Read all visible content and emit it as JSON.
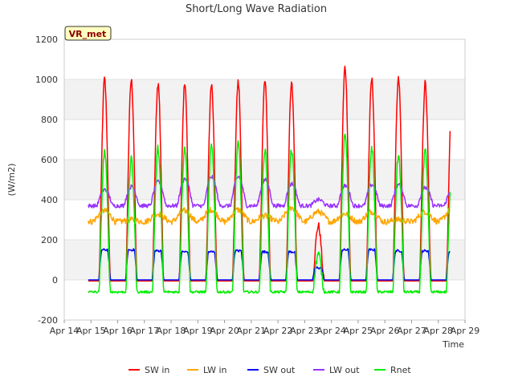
{
  "chart_data": {
    "type": "line",
    "title": "Short/Long Wave Radiation",
    "xlabel": "Time",
    "ylabel": "(W/m2)",
    "badge": "VR_met",
    "x_ticks": [
      "Apr 14",
      "Apr 15",
      "Apr 16",
      "Apr 17",
      "Apr 18",
      "Apr 19",
      "Apr 20",
      "Apr 21",
      "Apr 22",
      "Apr 23",
      "Apr 24",
      "Apr 25",
      "Apr 26",
      "Apr 27",
      "Apr 28",
      "Apr 29"
    ],
    "y_ticks": [
      -200,
      0,
      200,
      400,
      600,
      800,
      1000,
      1200
    ],
    "ylim": [
      -200,
      1200
    ],
    "grid": true,
    "legend_position": "bottom",
    "x_start_day": 14,
    "series": [
      {
        "name": "SW in",
        "color": "#ff0000",
        "daily_peak": [
          1000,
          995,
          980,
          975,
          970,
          985,
          990,
          975,
          270,
          1060,
          1000,
          1000,
          980,
          900
        ],
        "night": -5
      },
      {
        "name": "LW in",
        "color": "#ffa500",
        "daily_peak": [
          345,
          300,
          330,
          345,
          350,
          350,
          320,
          360,
          340,
          330,
          340,
          300,
          340,
          350
        ],
        "night": 290
      },
      {
        "name": "SW out",
        "color": "#0000ff",
        "daily_peak": [
          150,
          150,
          145,
          140,
          140,
          145,
          140,
          140,
          60,
          150,
          150,
          145,
          145,
          140
        ],
        "night": 0
      },
      {
        "name": "LW out",
        "color": "#9933ff",
        "daily_peak": [
          440,
          455,
          480,
          495,
          505,
          505,
          490,
          470,
          390,
          460,
          465,
          465,
          450,
          440
        ],
        "night": 360
      },
      {
        "name": "Rnet",
        "color": "#00ee00",
        "daily_peak": [
          640,
          600,
          655,
          660,
          665,
          675,
          650,
          650,
          130,
          720,
          655,
          620,
          640,
          520
        ],
        "night": -60
      }
    ]
  }
}
